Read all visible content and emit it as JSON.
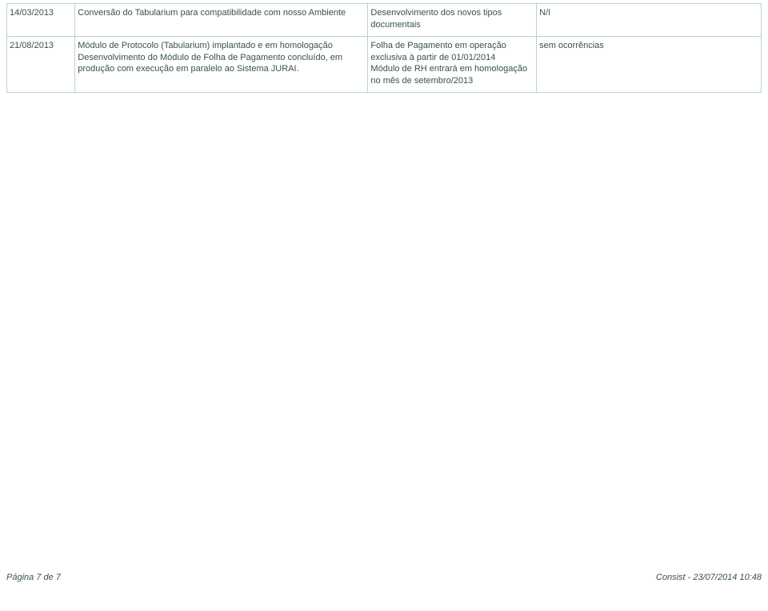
{
  "table": {
    "border_color": "#b8d4d4",
    "text_color": "#3a5050",
    "font_size": 11,
    "rows": [
      {
        "c1": "14/03/2013",
        "c2": "Conversão do Tabularium para compatibilidade com nosso Ambiente",
        "c3": "Desenvolvimento dos novos tipos documentais",
        "c4": "N/I"
      },
      {
        "c1": "21/08/2013",
        "c2": "Módulo de Protocolo (Tabularium) implantado e em homologação\nDesenvolvimento do Módulo de Folha de Pagamento concluído, em produção com execução em paralelo ao Sistema JURAI.",
        "c3": "Folha de Pagamento em operação exclusiva à partir de 01/01/2014\nMódulo de RH entrará em homologação no mês de setembro/2013",
        "c4": "sem ocorrências"
      }
    ]
  },
  "footer": {
    "left": "Página 7 de 7",
    "right": "Consist - 23/07/2014 10:48"
  }
}
